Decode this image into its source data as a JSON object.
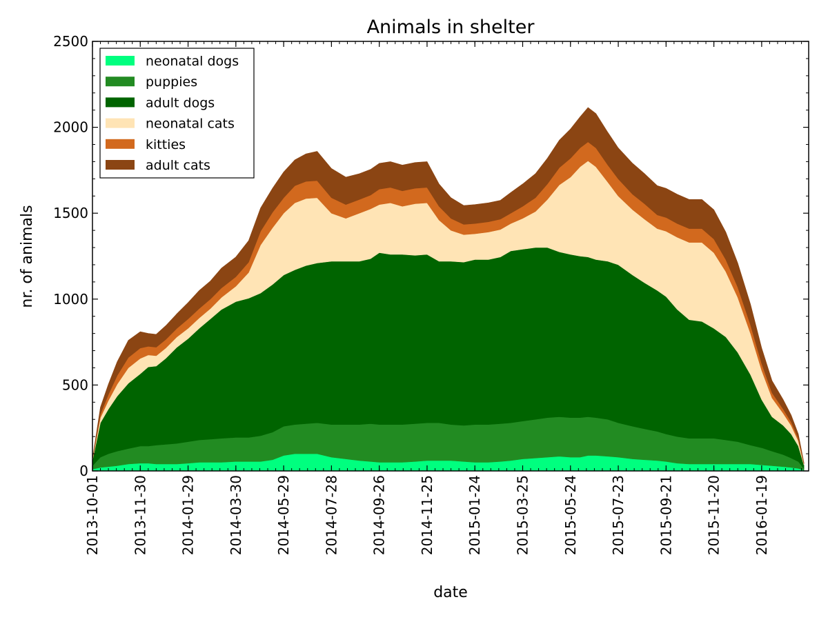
{
  "chart_data": {
    "type": "area",
    "stacked": true,
    "title": "Animals in shelter",
    "xlabel": "date",
    "ylabel": "nr. of animals",
    "ylim": [
      0,
      2500
    ],
    "xlim": [
      "2013-10-01",
      "2016-03-18"
    ],
    "grid": false,
    "legend_position": "top-left",
    "x_tick_labels": [
      "2013-10-01",
      "2013-11-30",
      "2014-01-29",
      "2014-03-30",
      "2014-05-29",
      "2014-07-28",
      "2014-09-26",
      "2014-11-25",
      "2015-01-24",
      "2015-03-25",
      "2015-05-24",
      "2015-07-23",
      "2015-09-21",
      "2015-11-20",
      "2016-01-19"
    ],
    "y_ticks": [
      0,
      500,
      1000,
      1500,
      2000,
      2500
    ],
    "x": [
      "2013-10-01",
      "2013-10-11",
      "2013-10-21",
      "2013-11-01",
      "2013-11-15",
      "2013-11-30",
      "2013-12-10",
      "2013-12-20",
      "2014-01-01",
      "2014-01-15",
      "2014-01-29",
      "2014-02-12",
      "2014-02-26",
      "2014-03-12",
      "2014-03-30",
      "2014-04-15",
      "2014-04-30",
      "2014-05-15",
      "2014-05-29",
      "2014-06-12",
      "2014-06-26",
      "2014-07-10",
      "2014-07-28",
      "2014-08-15",
      "2014-09-01",
      "2014-09-15",
      "2014-09-26",
      "2014-10-10",
      "2014-10-25",
      "2014-11-10",
      "2014-11-25",
      "2014-12-10",
      "2014-12-25",
      "2015-01-10",
      "2015-01-24",
      "2015-02-10",
      "2015-02-25",
      "2015-03-10",
      "2015-03-25",
      "2015-04-10",
      "2015-04-25",
      "2015-05-10",
      "2015-05-24",
      "2015-06-05",
      "2015-06-15",
      "2015-06-25",
      "2015-07-10",
      "2015-07-23",
      "2015-08-10",
      "2015-08-25",
      "2015-09-10",
      "2015-09-21",
      "2015-10-05",
      "2015-10-20",
      "2015-11-05",
      "2015-11-20",
      "2015-12-05",
      "2015-12-20",
      "2016-01-05",
      "2016-01-19",
      "2016-02-01",
      "2016-02-15",
      "2016-02-25",
      "2016-03-05",
      "2016-03-12"
    ],
    "series": [
      {
        "name": "neonatal dogs",
        "color": "#00ff7f",
        "values": [
          10,
          20,
          25,
          30,
          40,
          45,
          45,
          40,
          40,
          40,
          45,
          50,
          50,
          50,
          55,
          55,
          55,
          65,
          90,
          100,
          100,
          100,
          80,
          70,
          60,
          55,
          50,
          50,
          50,
          55,
          60,
          60,
          60,
          55,
          50,
          50,
          55,
          60,
          70,
          75,
          80,
          85,
          80,
          80,
          90,
          90,
          85,
          80,
          70,
          65,
          60,
          55,
          45,
          40,
          40,
          40,
          40,
          40,
          40,
          35,
          30,
          25,
          20,
          15,
          5
        ]
      },
      {
        "name": "puppies",
        "color": "#228b22",
        "values": [
          20,
          60,
          75,
          85,
          90,
          100,
          100,
          110,
          115,
          120,
          125,
          130,
          135,
          140,
          140,
          140,
          150,
          160,
          170,
          170,
          175,
          180,
          190,
          200,
          210,
          220,
          220,
          220,
          220,
          220,
          220,
          220,
          210,
          210,
          220,
          220,
          220,
          220,
          220,
          225,
          230,
          230,
          230,
          230,
          225,
          220,
          215,
          200,
          190,
          180,
          170,
          160,
          155,
          150,
          150,
          150,
          140,
          130,
          110,
          100,
          85,
          70,
          55,
          40,
          10
        ]
      },
      {
        "name": "adult dogs",
        "color": "#006400",
        "values": [
          30,
          200,
          260,
          320,
          380,
          420,
          460,
          460,
          500,
          560,
          600,
          650,
          700,
          750,
          790,
          810,
          830,
          860,
          880,
          900,
          920,
          930,
          950,
          950,
          950,
          960,
          1000,
          990,
          990,
          980,
          980,
          940,
          950,
          950,
          960,
          960,
          970,
          1000,
          1000,
          1000,
          990,
          960,
          950,
          940,
          930,
          920,
          920,
          920,
          880,
          850,
          820,
          800,
          740,
          690,
          680,
          640,
          600,
          520,
          410,
          280,
          200,
          170,
          140,
          90,
          20
        ]
      },
      {
        "name": "neonatal cats",
        "color": "#ffe4b5",
        "values": [
          5,
          30,
          50,
          70,
          90,
          90,
          70,
          60,
          60,
          60,
          60,
          60,
          60,
          70,
          90,
          150,
          280,
          330,
          360,
          390,
          390,
          380,
          280,
          250,
          280,
          290,
          280,
          300,
          280,
          300,
          300,
          240,
          180,
          160,
          150,
          160,
          160,
          160,
          180,
          210,
          280,
          390,
          450,
          520,
          560,
          540,
          460,
          400,
          380,
          370,
          360,
          380,
          420,
          450,
          460,
          440,
          380,
          320,
          240,
          170,
          110,
          70,
          50,
          30,
          5
        ]
      },
      {
        "name": "kitties",
        "color": "#d2691e",
        "values": [
          2,
          20,
          35,
          50,
          60,
          60,
          50,
          50,
          50,
          50,
          55,
          55,
          55,
          55,
          55,
          60,
          80,
          90,
          90,
          100,
          100,
          100,
          90,
          80,
          80,
          80,
          90,
          90,
          90,
          90,
          90,
          80,
          70,
          60,
          60,
          60,
          60,
          60,
          70,
          80,
          90,
          100,
          110,
          110,
          110,
          110,
          100,
          100,
          90,
          90,
          80,
          80,
          80,
          80,
          80,
          80,
          70,
          60,
          50,
          40,
          30,
          25,
          20,
          15,
          3
        ]
      },
      {
        "name": "adult cats",
        "color": "#8b4513",
        "values": [
          3,
          40,
          60,
          80,
          100,
          95,
          75,
          75,
          80,
          85,
          95,
          105,
          105,
          115,
          115,
          125,
          135,
          140,
          150,
          150,
          160,
          170,
          170,
          160,
          150,
          150,
          150,
          150,
          150,
          150,
          150,
          130,
          120,
          110,
          110,
          110,
          110,
          120,
          130,
          140,
          150,
          160,
          170,
          180,
          200,
          200,
          190,
          180,
          180,
          175,
          170,
          170,
          170,
          170,
          170,
          170,
          160,
          140,
          120,
          90,
          70,
          55,
          40,
          25,
          5
        ]
      }
    ]
  }
}
